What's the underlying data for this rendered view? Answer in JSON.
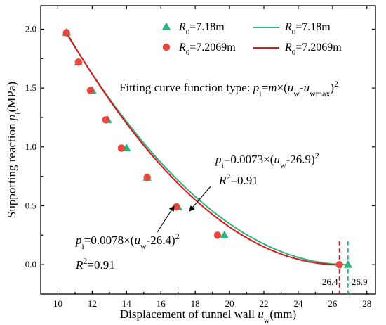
{
  "chart_data": {
    "type": "scatter",
    "xlabel": "Displacement of tunnel wall u_w(mm)",
    "ylabel": "Supporting reaction p_i(MPa)",
    "xlim": [
      9,
      28.5
    ],
    "ylim": [
      -0.25,
      2.2
    ],
    "xticks": [
      10,
      12,
      14,
      16,
      18,
      20,
      22,
      24,
      26,
      28
    ],
    "yticks": [
      0.0,
      0.5,
      1.0,
      1.5,
      2.0
    ],
    "xtick_labels": [
      "10",
      "12",
      "14",
      "16",
      "18",
      "20",
      "22",
      "24",
      "26",
      "28"
    ],
    "ytick_labels": [
      "0.0",
      "0.5",
      "1.0",
      "1.5",
      "2.0"
    ],
    "grid": false,
    "legend_position": "top-right",
    "series": [
      {
        "name": "R0=7.18m",
        "kind": "scatter",
        "marker": "triangle",
        "color": "#2db57e",
        "x": [
          10.5,
          11.2,
          12.0,
          12.9,
          14.0,
          15.2,
          17.0,
          19.7,
          26.9
        ],
        "y": [
          1.97,
          1.72,
          1.48,
          1.23,
          0.99,
          0.74,
          0.49,
          0.25,
          0.0
        ]
      },
      {
        "name": "R0=7.2069m",
        "kind": "scatter",
        "marker": "circle",
        "color": "#e8473f",
        "x": [
          10.5,
          11.2,
          11.9,
          12.8,
          13.7,
          15.2,
          16.9,
          19.3,
          26.4
        ],
        "y": [
          1.97,
          1.72,
          1.48,
          1.23,
          0.99,
          0.74,
          0.49,
          0.25,
          0.0
        ]
      },
      {
        "name": "R0=7.18m",
        "kind": "line",
        "color": "#2db57e",
        "m": 0.0073,
        "uwmax": 26.9,
        "x_range": [
          10.4,
          26.9
        ]
      },
      {
        "name": "R0=7.2069m",
        "kind": "line",
        "color": "#e0141b",
        "m": 0.0078,
        "uwmax": 26.4,
        "x_range": [
          10.4,
          26.4
        ]
      }
    ],
    "vlines": [
      {
        "x": 26.4,
        "color": "#e0141b",
        "label": "26.4"
      },
      {
        "x": 26.9,
        "color": "#2db57e",
        "label": "26.9"
      }
    ],
    "annotations": {
      "fit_type": "Fitting curve function type: pi=m×(uw-uwmax)^2",
      "green_eq": "pi=0.0073×(uw-26.9)^2",
      "green_r2": "R^2=0.91",
      "red_eq": "pi=0.0078×(uw-26.4)^2",
      "red_r2": "R^2=0.91"
    }
  }
}
